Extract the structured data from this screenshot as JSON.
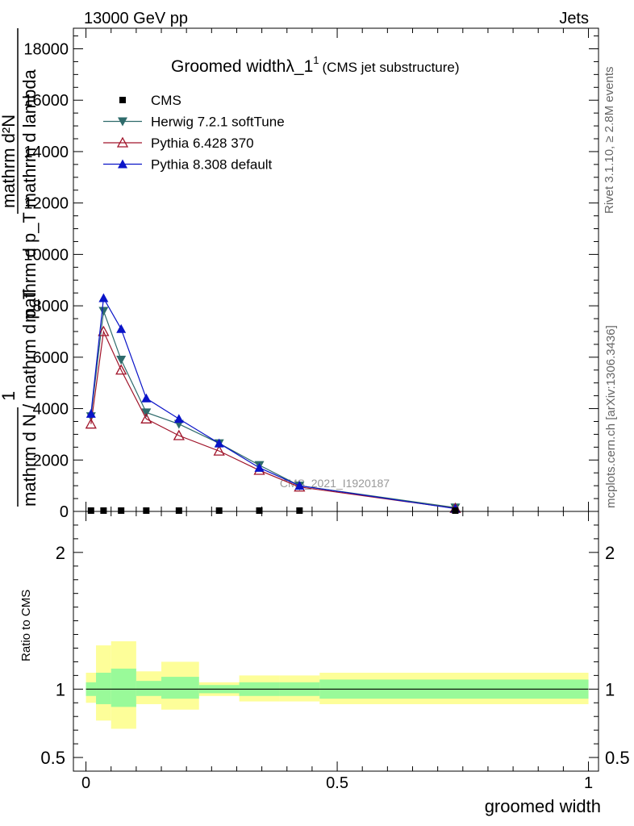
{
  "header": {
    "energy": "13000 GeV pp",
    "category": "Jets"
  },
  "side": {
    "rivet": "Rivet 3.1.10, ≥ 2.8M events",
    "source": "mcplots.cern.ch [arXiv:1306.3436]"
  },
  "watermark": "CMS_2021_I1920187",
  "chart_data": [
    {
      "type": "line",
      "title": "Groomed widthλ_1¹",
      "title_main": "Groomed widthλ_1",
      "title_sup": "1",
      "subtitle": "(CMS jet substructure)",
      "xlabel": "",
      "ylabel_num": "mathrm d²N",
      "ylabel_den": "mathrm d p_T mathrm d lambda",
      "ylabel_prefix": "1",
      "ylabel_prefix_den": "mathrm d N / mathrm d p_T",
      "xlim": [
        0,
        1
      ],
      "ylim": [
        0,
        18800
      ],
      "yticks": [
        0,
        2000,
        4000,
        6000,
        8000,
        10000,
        12000,
        14000,
        16000,
        18000
      ],
      "ytick_labels": [
        "0",
        "2000",
        "4000",
        "6000",
        "8000",
        "10000",
        "12000",
        "14000",
        "16000",
        "18000"
      ],
      "legend_position": "top-left",
      "x": [
        0.01,
        0.035,
        0.07,
        0.12,
        0.185,
        0.265,
        0.345,
        0.425,
        0.735
      ],
      "series": [
        {
          "name": "CMS",
          "color": "#000000",
          "marker": "square",
          "values": [
            0,
            0,
            0,
            0,
            0,
            0,
            0,
            0,
            0
          ]
        },
        {
          "name": "Herwig 7.2.1 softTune",
          "color": "#2e6b6b",
          "marker": "triangle-down",
          "values": [
            3700,
            7800,
            5900,
            3850,
            3400,
            2650,
            1800,
            1000,
            150
          ]
        },
        {
          "name": "Pythia 6.428 370",
          "color": "#a0142a",
          "marker": "triangle-up-open",
          "values": [
            3400,
            7000,
            5500,
            3600,
            2950,
            2350,
            1600,
            950,
            120
          ]
        },
        {
          "name": "Pythia 8.308 default",
          "color": "#0a14c8",
          "marker": "triangle-up",
          "values": [
            3800,
            8300,
            7100,
            4400,
            3600,
            2650,
            1700,
            1000,
            110
          ]
        }
      ]
    },
    {
      "type": "area",
      "title": "",
      "xlabel": "groomed width",
      "ylabel": "Ratio to CMS",
      "xlim": [
        -0.025,
        1.02
      ],
      "ylim": [
        0.4,
        2.3
      ],
      "xticks": [
        0,
        0.5,
        1
      ],
      "xtick_labels": [
        "0",
        "0.5",
        "1"
      ],
      "yticks": [
        0.5,
        1,
        2
      ],
      "ytick_labels": [
        "0.5",
        "1",
        "2"
      ],
      "bins": [
        {
          "lo": 0.0,
          "hi": 0.02,
          "inner": [
            0.95,
            1.05
          ],
          "outer": [
            0.9,
            1.12
          ]
        },
        {
          "lo": 0.02,
          "hi": 0.05,
          "inner": [
            0.89,
            1.12
          ],
          "outer": [
            0.77,
            1.32
          ]
        },
        {
          "lo": 0.05,
          "hi": 0.1,
          "inner": [
            0.87,
            1.15
          ],
          "outer": [
            0.71,
            1.35
          ]
        },
        {
          "lo": 0.1,
          "hi": 0.15,
          "inner": [
            0.95,
            1.06
          ],
          "outer": [
            0.89,
            1.13
          ]
        },
        {
          "lo": 0.15,
          "hi": 0.225,
          "inner": [
            0.93,
            1.09
          ],
          "outer": [
            0.85,
            1.2
          ]
        },
        {
          "lo": 0.225,
          "hi": 0.305,
          "inner": [
            0.97,
            1.03
          ],
          "outer": [
            0.95,
            1.05
          ]
        },
        {
          "lo": 0.305,
          "hi": 0.385,
          "inner": [
            0.95,
            1.05
          ],
          "outer": [
            0.91,
            1.1
          ]
        },
        {
          "lo": 0.385,
          "hi": 0.465,
          "inner": [
            0.95,
            1.05
          ],
          "outer": [
            0.91,
            1.1
          ]
        },
        {
          "lo": 0.465,
          "hi": 1.0,
          "inner": [
            0.93,
            1.07
          ],
          "outer": [
            0.89,
            1.12
          ]
        }
      ],
      "band_colors": {
        "inner": "#99fa99",
        "outer": "#fdfe99"
      }
    }
  ]
}
